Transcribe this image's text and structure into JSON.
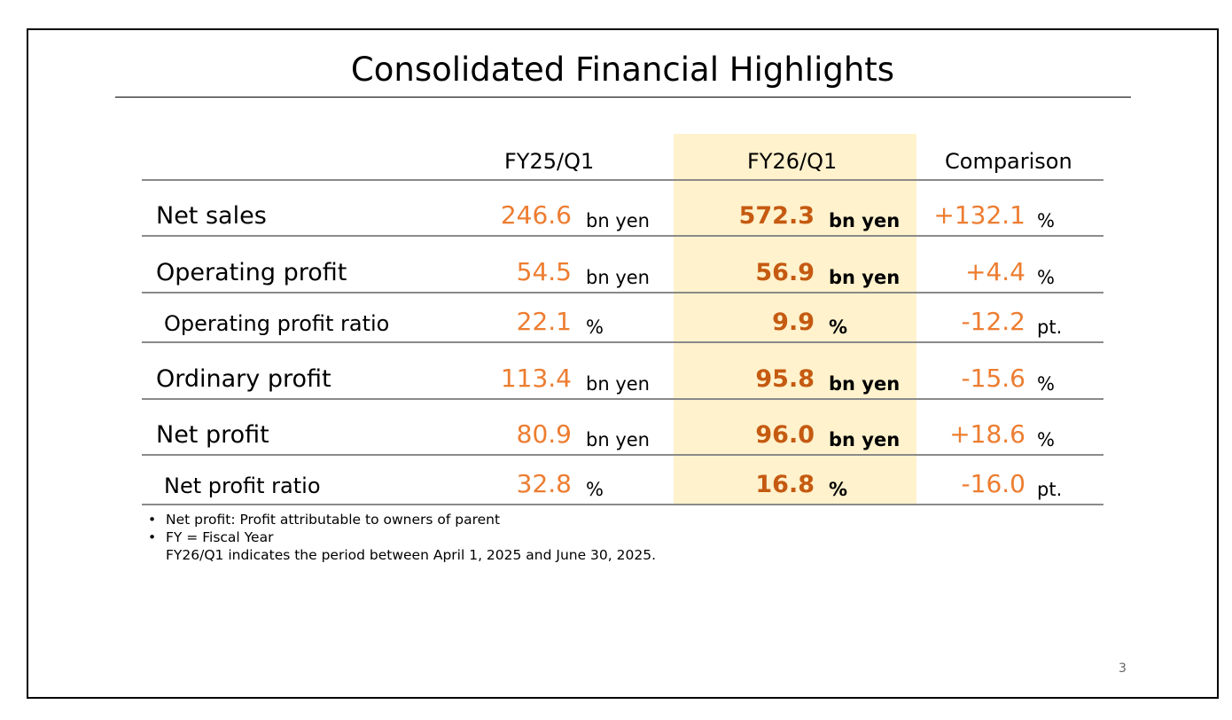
{
  "title": "Consolidated Financial Highlights",
  "columns": [
    "FY25/Q1",
    "FY26/Q1",
    "Comparison"
  ],
  "rows": [
    {
      "label": "Net sales",
      "sub": false,
      "fy25": "246.6",
      "fy25_unit": "bn yen",
      "fy26": "572.3",
      "fy26_unit": "bn yen",
      "cmp": "+132.1",
      "cmp_unit": "%"
    },
    {
      "label": "Operating profit",
      "sub": false,
      "fy25": "54.5",
      "fy25_unit": "bn yen",
      "fy26": "56.9",
      "fy26_unit": "bn yen",
      "cmp": "+4.4",
      "cmp_unit": "%"
    },
    {
      "label": "Operating profit ratio",
      "sub": true,
      "fy25": "22.1",
      "fy25_unit": "%",
      "fy26": "9.9",
      "fy26_unit": "%",
      "cmp": "-12.2",
      "cmp_unit": "pt."
    },
    {
      "label": "Ordinary profit",
      "sub": false,
      "fy25": "113.4",
      "fy25_unit": "bn yen",
      "fy26": "95.8",
      "fy26_unit": "bn yen",
      "cmp": "-15.6",
      "cmp_unit": "%"
    },
    {
      "label": "Net profit",
      "sub": false,
      "fy25": "80.9",
      "fy25_unit": "bn yen",
      "fy26": "96.0",
      "fy26_unit": "bn yen",
      "cmp": "+18.6",
      "cmp_unit": "%"
    },
    {
      "label": "Net profit ratio",
      "sub": true,
      "fy25": "32.8",
      "fy25_unit": "%",
      "fy26": "16.8",
      "fy26_unit": "%",
      "cmp": "-16.0",
      "cmp_unit": "pt."
    }
  ],
  "notes": {
    "bullet": "•",
    "n1": "Net profit: Profit attributable to owners of parent",
    "n2": "FY = Fiscal Year",
    "n3": "FY26/Q1 indicates the period between April 1, 2025 and June 30, 2025."
  },
  "page_number": "3",
  "colors": {
    "value": "#ED7D31",
    "highlight_value": "#C55A11",
    "highlight_bg": "#FFF2CC"
  }
}
